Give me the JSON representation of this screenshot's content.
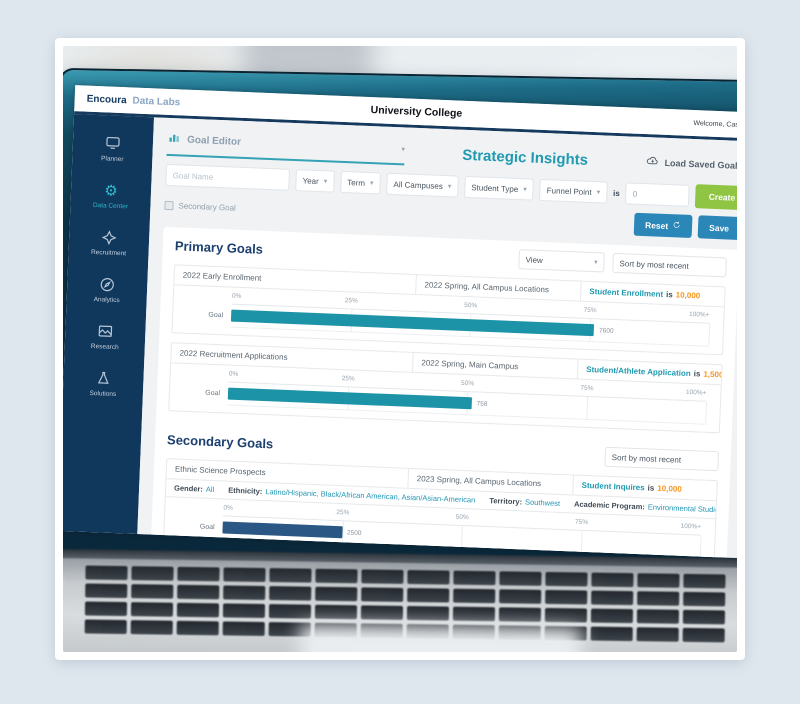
{
  "brand": {
    "logo_primary": "Encoura",
    "logo_secondary": "Data Labs"
  },
  "topbar": {
    "title": "University College",
    "welcome": "Welcome, Casey"
  },
  "sidebar": {
    "items": [
      {
        "label": "Planner"
      },
      {
        "label": "Data Center"
      },
      {
        "label": "Recruitment"
      },
      {
        "label": "Analytics"
      },
      {
        "label": "Research"
      },
      {
        "label": "Solutions"
      }
    ]
  },
  "toolbar": {
    "goal_editor_label": "Goal Editor",
    "page_title": "Strategic Insights",
    "load_saved_label": "Load Saved Goals"
  },
  "form": {
    "goal_name_placeholder": "Goal Name",
    "year_label": "Year",
    "term_label": "Term",
    "campuses_label": "All Campuses",
    "student_type_label": "Student Type",
    "funnel_point_label": "Funnel Point",
    "is_label": "is",
    "funnel_value": "0",
    "create_label": "Create My Goal",
    "secondary_goal_label": "Secondary Goal",
    "reset_label": "Reset",
    "save_label": "Save"
  },
  "primary_goals": {
    "heading": "Primary Goals",
    "view_label": "View",
    "sort_label": "Sort by most recent",
    "goal_row_label": "Goal",
    "axis_ticks": [
      "0%",
      "25%",
      "50%",
      "75%",
      "100%+"
    ],
    "items": [
      {
        "name": "2022 Early Enrollment",
        "scope": "2022 Spring, All Campus Locations",
        "metric": "Student Enrollment",
        "is_label": "is",
        "target": "10,000",
        "value_label": "7600",
        "percent": 76,
        "bar_color": "#1d93a8"
      },
      {
        "name": "2022 Recruitment Applications",
        "scope": "2022 Spring, Main Campus",
        "metric": "Student/Athlete Application",
        "is_label": "is",
        "target": "1,500",
        "value_label": "758",
        "percent": 51,
        "bar_color": "#1d93a8"
      }
    ]
  },
  "secondary_goals": {
    "heading": "Secondary Goals",
    "sort_label": "Sort by most recent",
    "items": [
      {
        "name": "Ethnic Science Prospects",
        "scope": "2023 Spring, All Campus Locations",
        "metric": "Student Inquires",
        "is_label": "is",
        "target": "10,000",
        "value_label": "2500",
        "percent": 25,
        "bar_color": "#2a5784",
        "attributes": [
          {
            "label": "Gender:",
            "value": "All"
          },
          {
            "label": "Ethnicity:",
            "value": "Latino/Hispanic, Black/African American, Asian/Asian-American"
          },
          {
            "label": "Territory:",
            "value": "Southwest"
          },
          {
            "label": "Academic Program:",
            "value": "Environmental Studies/Science"
          }
        ]
      }
    ]
  },
  "colors": {
    "accent_teal": "#1f9ab0",
    "bar_teal": "#1d93a8",
    "bar_navy": "#2a5784",
    "target_orange": "#f7941e",
    "button_green": "#8fc543",
    "button_blue": "#2b87b8",
    "sidebar_navy": "#10375c"
  }
}
